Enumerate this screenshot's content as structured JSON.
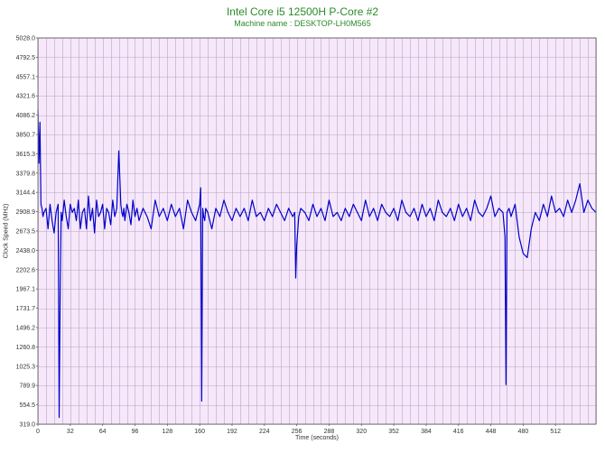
{
  "chart_data": {
    "type": "line",
    "title": "Intel Core i5 12500H P-Core #2",
    "subtitle": "Machine name : DESKTOP-LH0M565",
    "xlabel": "Time (seconds)",
    "ylabel": "Clock Speed (MHz)",
    "xlim": [
      0,
      552
    ],
    "ylim": [
      319.0,
      5028.0
    ],
    "x_ticks": [
      "0",
      "32",
      "64",
      "96",
      "128",
      "160",
      "192",
      "224",
      "256",
      "288",
      "320",
      "352",
      "384",
      "416",
      "448",
      "480",
      "512"
    ],
    "x_tick_values": [
      0,
      32,
      64,
      96,
      128,
      160,
      192,
      224,
      256,
      288,
      320,
      352,
      384,
      416,
      448,
      480,
      512
    ],
    "y_ticks": [
      "5028.0",
      "4792.5",
      "4557.1",
      "4321.6",
      "4086.2",
      "3850.7",
      "3615.3",
      "3379.8",
      "3144.4",
      "2908.9",
      "2673.5",
      "2438.0",
      "2202.6",
      "1967.1",
      "1731.7",
      "1496.2",
      "1260.8",
      "1025.3",
      "789.9",
      "554.5",
      "319.0"
    ],
    "y_tick_values": [
      5028.0,
      4792.5,
      4557.1,
      4321.6,
      4086.2,
      3850.7,
      3615.3,
      3379.8,
      3144.4,
      2908.9,
      2673.5,
      2438.0,
      2202.6,
      1967.1,
      1731.7,
      1496.2,
      1260.8,
      1025.3,
      789.9,
      554.5,
      319.0
    ],
    "grid": true,
    "colors": {
      "line": "#0000cc",
      "plot_background": "#f6e8fa",
      "grid": "#b9a4c4",
      "title": "#2a8a2a"
    },
    "series": [
      {
        "x": [
          0,
          1,
          2,
          3,
          4,
          5,
          6,
          8,
          10,
          12,
          14,
          16,
          18,
          20,
          21,
          22,
          23,
          24,
          26,
          28,
          30,
          32,
          34,
          36,
          38,
          40,
          42,
          44,
          46,
          48,
          50,
          52,
          54,
          56,
          58,
          60,
          62,
          64,
          66,
          68,
          70,
          72,
          74,
          76,
          78,
          80,
          82,
          83,
          84,
          85,
          86,
          88,
          90,
          92,
          94,
          96,
          98,
          100,
          104,
          108,
          112,
          116,
          120,
          124,
          128,
          132,
          136,
          140,
          144,
          148,
          152,
          156,
          160,
          161,
          162,
          163,
          164,
          165,
          166,
          168,
          172,
          176,
          180,
          184,
          188,
          192,
          196,
          200,
          204,
          208,
          212,
          216,
          220,
          224,
          228,
          232,
          236,
          240,
          244,
          248,
          252,
          254,
          255,
          256,
          258,
          260,
          264,
          268,
          272,
          276,
          280,
          284,
          288,
          292,
          296,
          300,
          304,
          308,
          312,
          316,
          320,
          324,
          328,
          332,
          336,
          340,
          344,
          348,
          352,
          356,
          360,
          364,
          368,
          372,
          376,
          380,
          384,
          388,
          392,
          396,
          400,
          404,
          408,
          412,
          416,
          420,
          424,
          428,
          432,
          436,
          440,
          444,
          448,
          452,
          456,
          460,
          462,
          463,
          464,
          466,
          468,
          472,
          474,
          476,
          478,
          480,
          484,
          488,
          492,
          496,
          500,
          504,
          508,
          512,
          516,
          520,
          524,
          528,
          532,
          536,
          540,
          544,
          548,
          552
        ],
        "y": [
          4150,
          3500,
          4000,
          3000,
          2950,
          2850,
          2900,
          2950,
          2700,
          3000,
          2800,
          2650,
          2900,
          3000,
          400,
          1950,
          2900,
          2800,
          3050,
          2850,
          2700,
          3000,
          2900,
          2950,
          2800,
          3050,
          2700,
          2900,
          2950,
          2700,
          3100,
          2800,
          2950,
          2650,
          3050,
          2850,
          2900,
          3000,
          2700,
          2950,
          2900,
          2750,
          3050,
          2850,
          2950,
          3650,
          3000,
          2900,
          2850,
          2950,
          2800,
          3000,
          2900,
          2750,
          3050,
          2850,
          2950,
          2800,
          2950,
          2850,
          2700,
          3050,
          2850,
          2950,
          2800,
          3000,
          2850,
          2950,
          2700,
          3050,
          2900,
          2800,
          3000,
          3200,
          600,
          2950,
          2850,
          2800,
          2950,
          2900,
          2700,
          2950,
          2850,
          3050,
          2900,
          2800,
          2950,
          2850,
          2950,
          2800,
          3050,
          2850,
          2900,
          2800,
          2950,
          2850,
          3000,
          2900,
          2800,
          2950,
          2850,
          2900,
          2100,
          2500,
          2850,
          2950,
          2900,
          2800,
          3000,
          2850,
          2950,
          2800,
          3050,
          2850,
          2900,
          2800,
          2950,
          2850,
          3000,
          2900,
          2800,
          3050,
          2850,
          2950,
          2800,
          3000,
          2900,
          2850,
          2950,
          2800,
          3050,
          2900,
          2850,
          2950,
          2800,
          3000,
          2850,
          2950,
          2800,
          3050,
          2900,
          2850,
          2950,
          2800,
          3000,
          2850,
          2950,
          2800,
          3050,
          2900,
          2850,
          2950,
          3100,
          2850,
          2950,
          2900,
          2600,
          800,
          2900,
          2950,
          2850,
          3000,
          2800,
          2600,
          2500,
          2400,
          2350,
          2700,
          2900,
          2800,
          3000,
          2850,
          3100,
          2900,
          2950,
          2850,
          3050,
          2900,
          3050,
          3250,
          2900,
          3050,
          2950,
          2900
        ]
      }
    ]
  }
}
